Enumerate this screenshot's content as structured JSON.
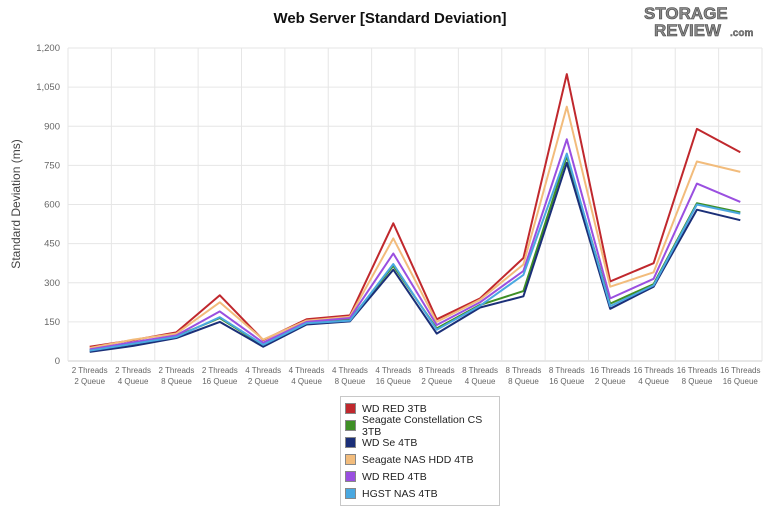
{
  "brand": {
    "logo_line1": "STORAGE",
    "logo_line2": "REVIEW",
    "logo_suffix": ".com"
  },
  "chart_data": {
    "type": "line",
    "title": "Web Server [Standard Deviation]",
    "xlabel": "",
    "ylabel": "Standard Deviation (ms)",
    "ylim": [
      0,
      1200
    ],
    "yticks": [
      0,
      150,
      300,
      450,
      600,
      750,
      900,
      1050,
      1200
    ],
    "ytick_labels": [
      "0",
      "150",
      "300",
      "450",
      "600",
      "750",
      "900",
      "1,050",
      "1,200"
    ],
    "grid": true,
    "legend_position": "bottom-center",
    "categories": [
      [
        "2 Threads",
        "2 Queue"
      ],
      [
        "2 Threads",
        "4 Queue"
      ],
      [
        "2 Threads",
        "8 Queue"
      ],
      [
        "2 Threads",
        "16 Queue"
      ],
      [
        "4 Threads",
        "2 Queue"
      ],
      [
        "4 Threads",
        "4 Queue"
      ],
      [
        "4 Threads",
        "8 Queue"
      ],
      [
        "4 Threads",
        "16 Queue"
      ],
      [
        "8 Threads",
        "2 Queue"
      ],
      [
        "8 Threads",
        "4 Queue"
      ],
      [
        "8 Threads",
        "8 Queue"
      ],
      [
        "8 Threads",
        "16 Queue"
      ],
      [
        "16 Threads",
        "2 Queue"
      ],
      [
        "16 Threads",
        "4 Queue"
      ],
      [
        "16 Threads",
        "8 Queue"
      ],
      [
        "16 Threads",
        "16 Queue"
      ]
    ],
    "series": [
      {
        "name": "WD RED 3TB",
        "color": "#c0282d",
        "values": [
          55,
          80,
          110,
          252,
          80,
          160,
          175,
          528,
          160,
          240,
          395,
          1100,
          305,
          375,
          890,
          800
        ]
      },
      {
        "name": "Seagate Constellation CS 3TB",
        "color": "#3e8f25",
        "values": [
          42,
          65,
          95,
          165,
          60,
          148,
          158,
          365,
          125,
          215,
          268,
          785,
          220,
          295,
          605,
          570
        ]
      },
      {
        "name": "WD Se 4TB",
        "color": "#1b2f78",
        "values": [
          35,
          58,
          88,
          150,
          55,
          140,
          152,
          350,
          105,
          205,
          248,
          760,
          200,
          285,
          580,
          540
        ]
      },
      {
        "name": "Seagate NAS HDD 4TB",
        "color": "#f2bc7c",
        "values": [
          50,
          82,
          105,
          225,
          82,
          155,
          170,
          470,
          150,
          235,
          370,
          975,
          285,
          340,
          765,
          725
        ]
      },
      {
        "name": "WD RED 4TB",
        "color": "#9a4fe0",
        "values": [
          45,
          72,
          98,
          190,
          70,
          150,
          165,
          412,
          138,
          225,
          345,
          850,
          240,
          315,
          680,
          610
        ]
      },
      {
        "name": "HGST NAS 4TB",
        "color": "#4aa8e0",
        "values": [
          40,
          66,
          92,
          168,
          62,
          145,
          155,
          372,
          120,
          212,
          330,
          795,
          210,
          290,
          600,
          565
        ]
      }
    ]
  }
}
